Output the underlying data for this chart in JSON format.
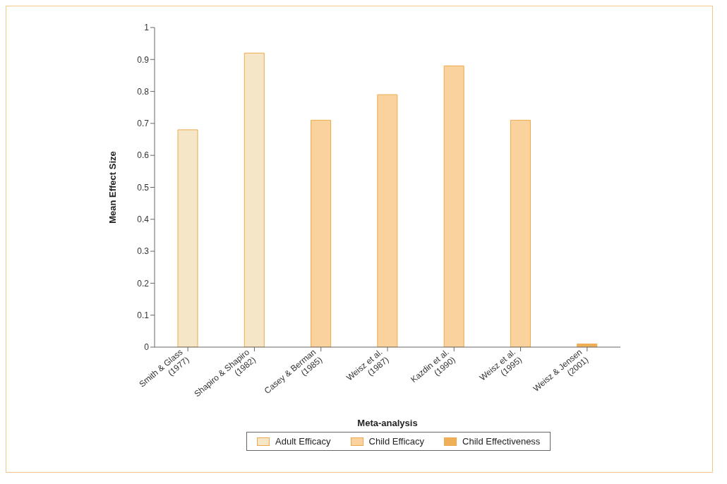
{
  "chart_data": {
    "type": "bar",
    "xlabel": "Meta-analysis",
    "ylabel": "Mean Effect Size",
    "categories": [
      "Smith & Glass\n(1977)",
      "Shapiro & Shapiro\n(1982)",
      "Casey & Berman\n(1985)",
      "Weisz et al.\n(1987)",
      "Kazdin et al.\n(1990)",
      "Weisz et al.\n(1995)",
      "Weisz & Jensen\n(2001)"
    ],
    "series": [
      {
        "name": "Adult Efficacy",
        "color": "#f6e6c8",
        "values": [
          0.68,
          0.92,
          null,
          null,
          null,
          null,
          null
        ]
      },
      {
        "name": "Child Efficacy",
        "color": "#f9d29e",
        "values": [
          null,
          null,
          0.71,
          0.79,
          0.88,
          0.71,
          null
        ]
      },
      {
        "name": "Child Effectiveness",
        "color": "#f0b058",
        "values": [
          null,
          null,
          null,
          null,
          null,
          null,
          0.01
        ]
      }
    ],
    "stacked": true,
    "ylim": [
      0,
      1
    ],
    "yticks": [
      0,
      0.1,
      0.2,
      0.3,
      0.4,
      0.5,
      0.6,
      0.7,
      0.8,
      0.9,
      1
    ],
    "grid": false,
    "legend": "bottom"
  }
}
